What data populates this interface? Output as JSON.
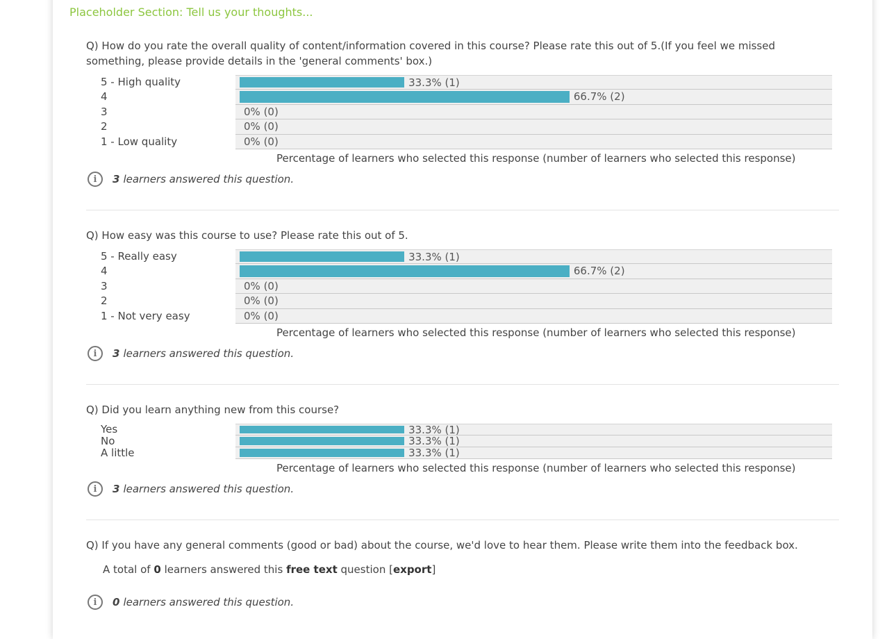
{
  "section_title": "Placeholder Section: Tell us your thoughts...",
  "chart_caption": "Percentage of learners who selected this response (number of learners who selected this response)",
  "questions": [
    {
      "text": "Q) How do you rate the overall quality of content/information covered in this course? Please rate this out of 5.(If you feel we missed something, please provide details in the 'general comments' box.)",
      "answered_count": "3",
      "answered_text": "learners answered this question."
    },
    {
      "text": "Q) How easy was this course to use? Please rate this out of 5.",
      "answered_count": "3",
      "answered_text": "learners answered this question."
    },
    {
      "text": "Q) Did you learn anything new from this course?",
      "answered_count": "3",
      "answered_text": "learners answered this question."
    },
    {
      "text": "Q) If you have any general comments (good or bad) about the course, we'd love to hear them. Please write them into the feedback box.",
      "answered_count": "0",
      "answered_text": "learners answered this question."
    }
  ],
  "free_text": {
    "prefix": "A total of",
    "count": "0",
    "middle": "learners answered this",
    "kind": "free text",
    "suffix_open": "question [",
    "export_label": "export",
    "suffix_close": "]"
  },
  "chart_data": [
    {
      "type": "bar",
      "orientation": "horizontal",
      "categories": [
        "5 - High quality",
        "4",
        "3",
        "2",
        "1 - Low quality"
      ],
      "values": [
        33.3,
        66.7,
        0,
        0,
        0
      ],
      "counts": [
        1,
        2,
        0,
        0,
        0
      ],
      "value_labels": [
        "33.3% (1)",
        "66.7% (2)",
        "0% (0)",
        "0% (0)",
        "0% (0)"
      ],
      "xlim": [
        0,
        100
      ]
    },
    {
      "type": "bar",
      "orientation": "horizontal",
      "categories": [
        "5 - Really easy",
        "4",
        "3",
        "2",
        "1 - Not very easy"
      ],
      "values": [
        33.3,
        66.7,
        0,
        0,
        0
      ],
      "counts": [
        1,
        2,
        0,
        0,
        0
      ],
      "value_labels": [
        "33.3% (1)",
        "66.7% (2)",
        "0% (0)",
        "0% (0)",
        "0% (0)"
      ],
      "xlim": [
        0,
        100
      ]
    },
    {
      "type": "bar",
      "orientation": "horizontal",
      "categories": [
        "Yes",
        "No",
        "A little"
      ],
      "values": [
        33.3,
        33.3,
        33.3
      ],
      "counts": [
        1,
        1,
        1
      ],
      "value_labels": [
        "33.3% (1)",
        "33.3% (1)",
        "33.3% (1)"
      ],
      "xlim": [
        0,
        100
      ]
    }
  ],
  "colors": {
    "bar": "#4bafc4",
    "section_title": "#8cc63f"
  }
}
